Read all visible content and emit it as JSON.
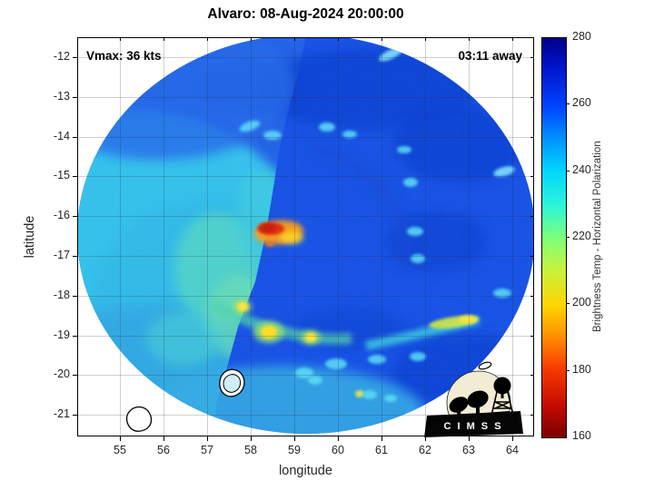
{
  "title": "Alvaro: 08-Aug-2024 20:00:00",
  "annotations": {
    "vmax": "Vmax: 36 kts",
    "time_away": "03:11 away"
  },
  "axes": {
    "xlabel": "longitude",
    "ylabel": "latitude",
    "x_ticks": [
      "55",
      "56",
      "57",
      "58",
      "59",
      "60",
      "61",
      "62",
      "63",
      "64"
    ],
    "y_ticks": [
      "-12",
      "-13",
      "-14",
      "-15",
      "-16",
      "-17",
      "-18",
      "-19",
      "-20",
      "-21"
    ]
  },
  "colorbar": {
    "label": "Brightness Temp - Horizontal Polarization",
    "min": 160,
    "max": 280,
    "ticks": [
      "280",
      "260",
      "240",
      "220",
      "200",
      "180",
      "160"
    ],
    "colormap_top_to_bottom": [
      [
        "0%",
        "#000089"
      ],
      [
        "7%",
        "#0013c8"
      ],
      [
        "17%",
        "#0042ff"
      ],
      [
        "25%",
        "#0090ff"
      ],
      [
        "33%",
        "#00d4ff"
      ],
      [
        "42%",
        "#2df5d8"
      ],
      [
        "50%",
        "#7dff7a"
      ],
      [
        "58%",
        "#c8f23c"
      ],
      [
        "67%",
        "#ffd500"
      ],
      [
        "75%",
        "#ff8c00"
      ],
      [
        "83%",
        "#f83800"
      ],
      [
        "92%",
        "#c40c00"
      ],
      [
        "100%",
        "#7d0000"
      ]
    ]
  },
  "logo": {
    "text": "C I M S S"
  },
  "chart_data": {
    "type": "heatmap",
    "title": "Alvaro: 08-Aug-2024 20:00:00",
    "xlabel": "longitude",
    "ylabel": "latitude",
    "xlim": [
      54.0,
      64.5
    ],
    "ylim": [
      -21.55,
      -11.5
    ],
    "x_ticks": [
      55,
      56,
      57,
      58,
      59,
      60,
      61,
      62,
      63,
      64
    ],
    "y_ticks": [
      -12,
      -13,
      -14,
      -15,
      -16,
      -17,
      -18,
      -19,
      -20,
      -21
    ],
    "grid": true,
    "colorbar": {
      "label": "Brightness Temp - Horizontal Polarization",
      "range": [
        160,
        280
      ],
      "ticks": [
        160,
        180,
        200,
        220,
        240,
        260,
        280
      ],
      "colormap": "reversed jet (280=dark blue, 240=cyan, 200=yellow, 160=dark red)",
      "position": "right"
    },
    "storm": {
      "name": "Alvaro",
      "vmax_kts": 36,
      "obs_offset": "03:11 away",
      "datetime": "08-Aug-2024 20:00:00"
    },
    "swath": {
      "shape": "circular microwave swath on white background",
      "center_lon": 59.2,
      "center_lat": -16.9,
      "radius_deg": 5.1,
      "seam": "swath-edge seam from about (58.9,-13.2) down to (57.2,-20.6); lighter cyan swath (~240-248 K) west of seam, blue swath (~253-263 K) east"
    },
    "features": [
      {
        "desc": "intense convection hot spot (min Tb ~168-185 K, red/orange)",
        "lon": 58.45,
        "lat": -16.35
      },
      {
        "desc": "orange-yellow halo east of hot spot (~195-210 K)",
        "lon": 58.7,
        "lat": -16.45
      },
      {
        "desc": "convective cell (~200 K, yellow)",
        "lon": 57.8,
        "lat": -18.3
      },
      {
        "desc": "convective cell (~200-205 K, yellow w/ green halo)",
        "lon": 58.4,
        "lat": -18.95
      },
      {
        "desc": "convective cell (~205 K, yellow)",
        "lon": 59.3,
        "lat": -19.05
      },
      {
        "desc": "small convective cell (~210 K)",
        "lon": 60.45,
        "lat": -20.5
      },
      {
        "desc": "yellow-green rainband streak (~210-215 K)",
        "lon": 62.8,
        "lat": -18.6
      },
      {
        "desc": "curved rainband of cyan cells (~230-240 K) across southeast quadrant",
        "lon": 60.5,
        "lat": -19.3
      },
      {
        "desc": "scattered light-cyan cells (~235-245 K) in northern/eastern swath",
        "lon": 61.0,
        "lat": -14.5
      },
      {
        "desc": "darkest blue areas (~265-272 K) northeast and east-southeast",
        "lon": 62.0,
        "lat": -13.5
      }
    ],
    "coastline_contours": [
      {
        "lon": 55.55,
        "lat": -21.1
      },
      {
        "lon": 57.55,
        "lat": -20.35
      },
      {
        "lon": 63.35,
        "lat": -19.75
      }
    ]
  }
}
